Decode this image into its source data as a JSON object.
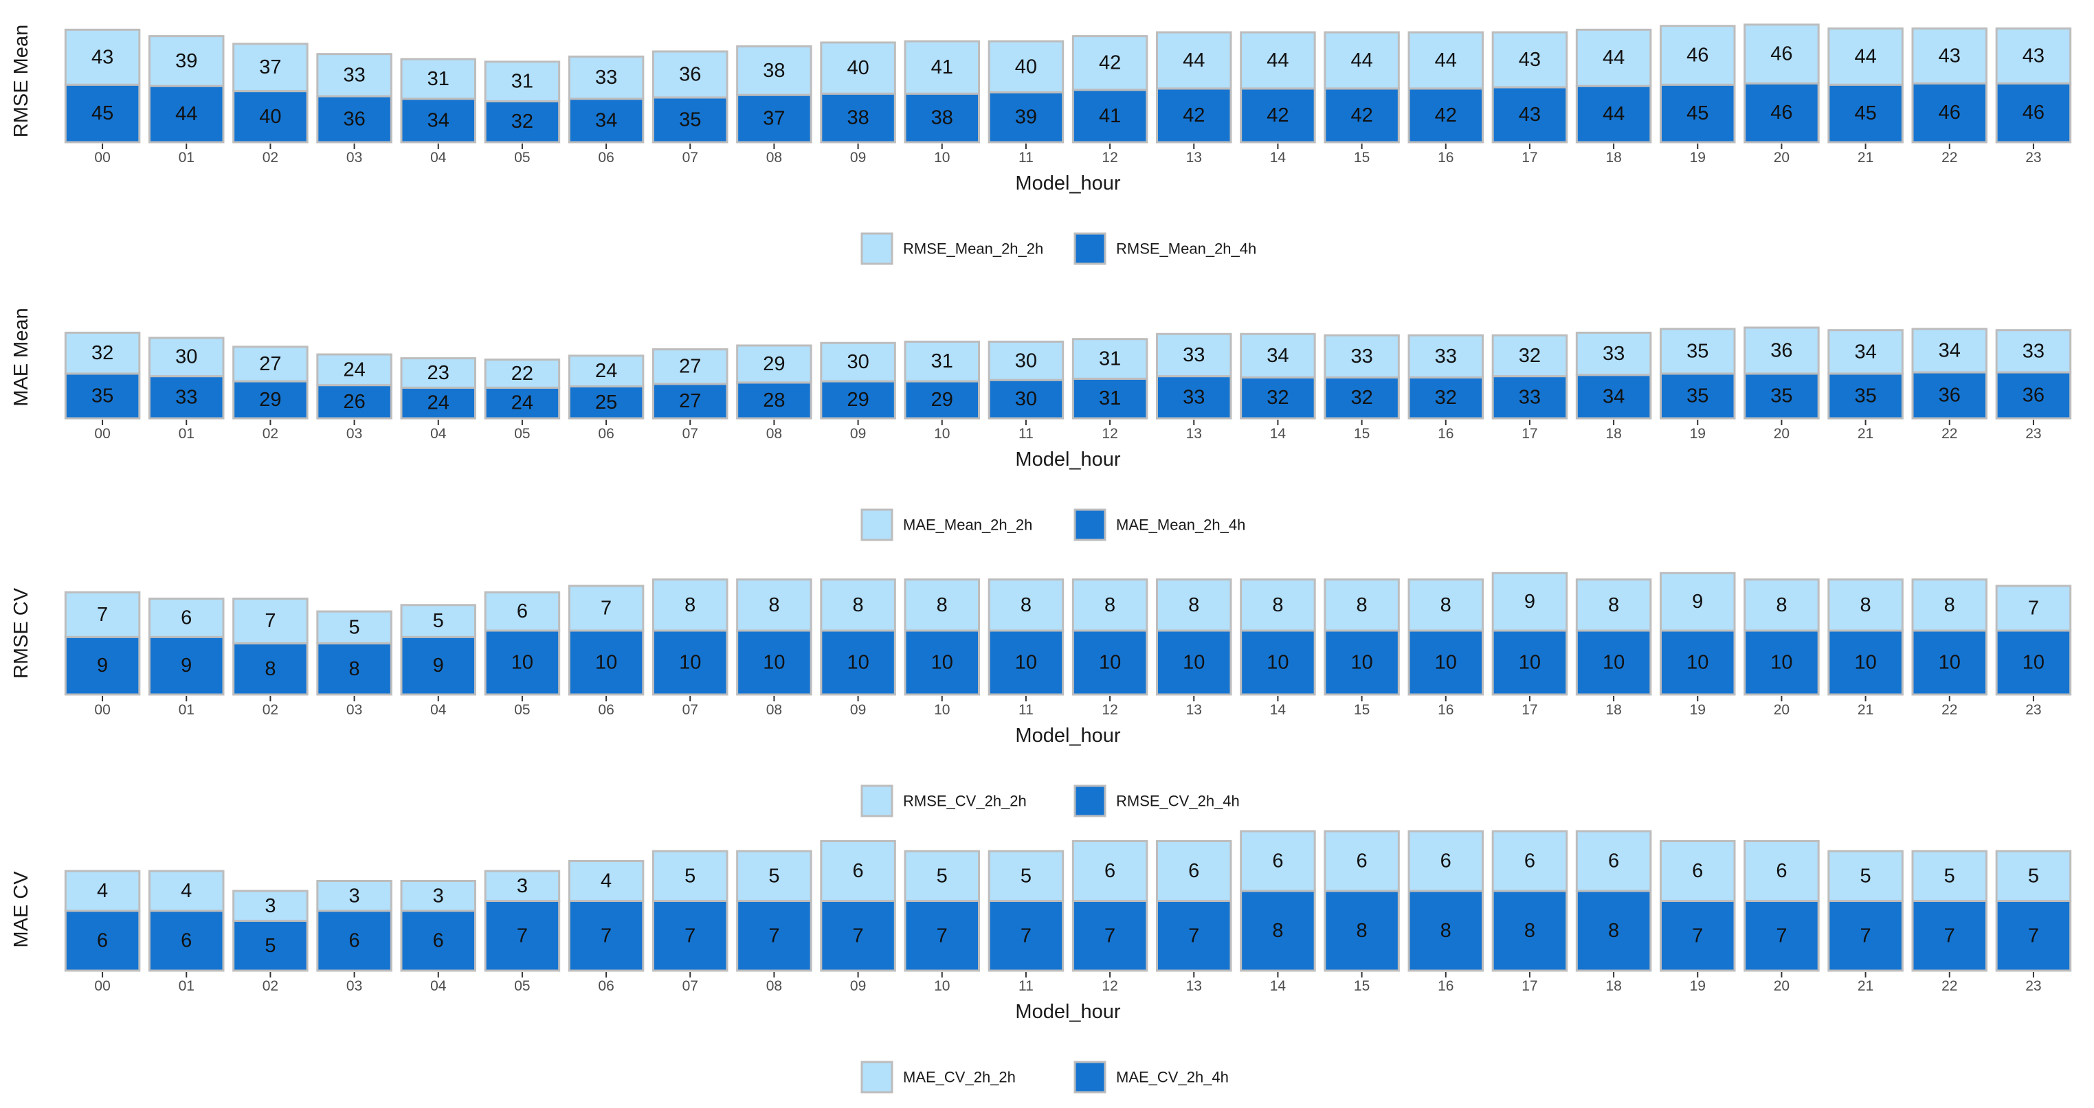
{
  "colors": {
    "light": "#b3e0fb",
    "dark": "#1574d0",
    "border": "#bdbdbd"
  },
  "chart_data": [
    {
      "type": "bar",
      "stacked": true,
      "ylabel": "RMSE Mean",
      "xlabel": "Model_hour",
      "categories": [
        "00",
        "01",
        "02",
        "03",
        "04",
        "05",
        "06",
        "07",
        "08",
        "09",
        "10",
        "11",
        "12",
        "13",
        "14",
        "15",
        "16",
        "17",
        "18",
        "19",
        "20",
        "21",
        "22",
        "23"
      ],
      "series": [
        {
          "name": "RMSE_Mean_2h_2h",
          "color": "#b3e0fb",
          "values": [
            43,
            39,
            37,
            33,
            31,
            31,
            33,
            36,
            38,
            40,
            41,
            40,
            42,
            44,
            44,
            44,
            44,
            43,
            44,
            46,
            46,
            44,
            43,
            43
          ]
        },
        {
          "name": "RMSE_Mean_2h_4h",
          "color": "#1574d0",
          "values": [
            45,
            44,
            40,
            36,
            34,
            32,
            34,
            35,
            37,
            38,
            38,
            39,
            41,
            42,
            42,
            42,
            42,
            43,
            44,
            45,
            46,
            45,
            46,
            46
          ]
        }
      ],
      "legend": "bottom"
    },
    {
      "type": "bar",
      "stacked": true,
      "ylabel": "MAE Mean",
      "xlabel": "Model_hour",
      "categories": [
        "00",
        "01",
        "02",
        "03",
        "04",
        "05",
        "06",
        "07",
        "08",
        "09",
        "10",
        "11",
        "12",
        "13",
        "14",
        "15",
        "16",
        "17",
        "18",
        "19",
        "20",
        "21",
        "22",
        "23"
      ],
      "series": [
        {
          "name": "MAE_Mean_2h_2h",
          "color": "#b3e0fb",
          "values": [
            32,
            30,
            27,
            24,
            23,
            22,
            24,
            27,
            29,
            30,
            31,
            30,
            31,
            33,
            34,
            33,
            33,
            32,
            33,
            35,
            36,
            34,
            34,
            33
          ]
        },
        {
          "name": "MAE_Mean_2h_4h",
          "color": "#1574d0",
          "values": [
            35,
            33,
            29,
            26,
            24,
            24,
            25,
            27,
            28,
            29,
            29,
            30,
            31,
            33,
            32,
            32,
            32,
            33,
            34,
            35,
            35,
            35,
            36,
            36
          ]
        }
      ],
      "legend": "bottom"
    },
    {
      "type": "bar",
      "stacked": true,
      "ylabel": "RMSE CV",
      "xlabel": "Model_hour",
      "categories": [
        "00",
        "01",
        "02",
        "03",
        "04",
        "05",
        "06",
        "07",
        "08",
        "09",
        "10",
        "11",
        "12",
        "13",
        "14",
        "15",
        "16",
        "17",
        "18",
        "19",
        "20",
        "21",
        "22",
        "23"
      ],
      "series": [
        {
          "name": "RMSE_CV_2h_2h",
          "color": "#b3e0fb",
          "values": [
            7,
            6,
            7,
            5,
            5,
            6,
            7,
            8,
            8,
            8,
            8,
            8,
            8,
            8,
            8,
            8,
            8,
            9,
            8,
            9,
            8,
            8,
            8,
            7
          ]
        },
        {
          "name": "RMSE_CV_2h_4h",
          "color": "#1574d0",
          "values": [
            9,
            9,
            8,
            8,
            9,
            10,
            10,
            10,
            10,
            10,
            10,
            10,
            10,
            10,
            10,
            10,
            10,
            10,
            10,
            10,
            10,
            10,
            10,
            10
          ]
        }
      ],
      "legend": "bottom"
    },
    {
      "type": "bar",
      "stacked": true,
      "ylabel": "MAE CV",
      "xlabel": "Model_hour",
      "categories": [
        "00",
        "01",
        "02",
        "03",
        "04",
        "05",
        "06",
        "07",
        "08",
        "09",
        "10",
        "11",
        "12",
        "13",
        "14",
        "15",
        "16",
        "17",
        "18",
        "19",
        "20",
        "21",
        "22",
        "23"
      ],
      "series": [
        {
          "name": "MAE_CV_2h_2h",
          "color": "#b3e0fb",
          "values": [
            4,
            4,
            3,
            3,
            3,
            3,
            4,
            5,
            5,
            6,
            5,
            5,
            6,
            6,
            6,
            6,
            6,
            6,
            6,
            6,
            6,
            5,
            5,
            5
          ]
        },
        {
          "name": "MAE_CV_2h_4h",
          "color": "#1574d0",
          "values": [
            6,
            6,
            5,
            6,
            6,
            7,
            7,
            7,
            7,
            7,
            7,
            7,
            7,
            7,
            8,
            8,
            8,
            8,
            8,
            7,
            7,
            7,
            7,
            7
          ]
        }
      ],
      "legend": "bottom"
    }
  ]
}
